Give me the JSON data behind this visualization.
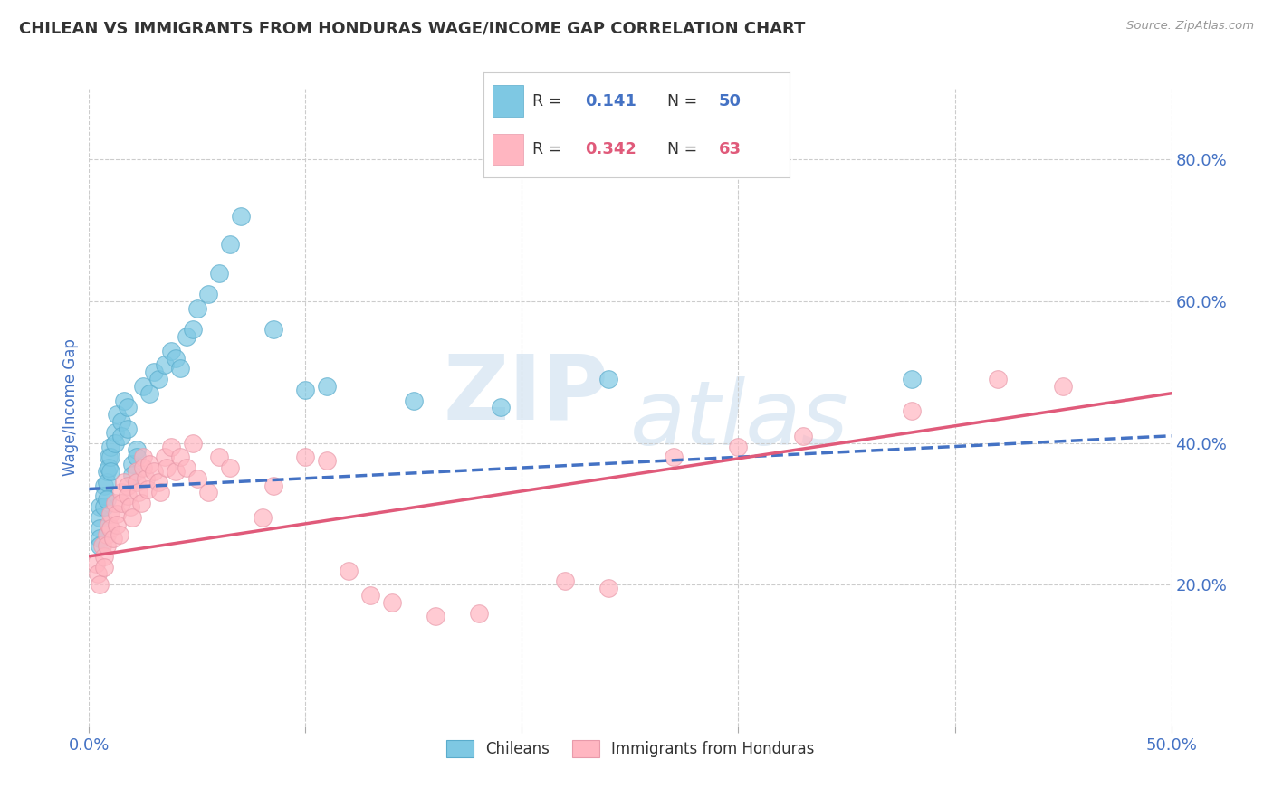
{
  "title": "CHILEAN VS IMMIGRANTS FROM HONDURAS WAGE/INCOME GAP CORRELATION CHART",
  "source": "Source: ZipAtlas.com",
  "ylabel": "Wage/Income Gap",
  "watermark_line1": "ZIP",
  "watermark_line2": "atlas",
  "R1": "0.141",
  "N1": "50",
  "R2": "0.342",
  "N2": "63",
  "color1": "#7ec8e3",
  "color2": "#ffb6c1",
  "color1_edge": "#5aaccc",
  "color2_edge": "#e89aaa",
  "trendline1_color": "#4472c4",
  "trendline2_color": "#e05a7a",
  "xlim": [
    0.0,
    0.5
  ],
  "ylim": [
    0.0,
    0.9
  ],
  "yticks": [
    0.2,
    0.4,
    0.6,
    0.8
  ],
  "ytick_labels": [
    "20.0%",
    "40.0%",
    "60.0%",
    "80.0%"
  ],
  "xtick_labels_left": "0.0%",
  "xtick_labels_right": "50.0%",
  "grid_xticks": [
    0.0,
    0.1,
    0.2,
    0.3,
    0.4,
    0.5
  ],
  "title_color": "#333333",
  "axis_tick_color": "#4472c4",
  "background_color": "#ffffff",
  "legend1_label": "Chileans",
  "legend2_label": "Immigrants from Honduras",
  "scatter1_x": [
    0.005,
    0.005,
    0.005,
    0.005,
    0.005,
    0.007,
    0.007,
    0.007,
    0.008,
    0.008,
    0.008,
    0.009,
    0.009,
    0.01,
    0.01,
    0.01,
    0.012,
    0.012,
    0.013,
    0.015,
    0.015,
    0.016,
    0.018,
    0.018,
    0.02,
    0.02,
    0.022,
    0.022,
    0.025,
    0.028,
    0.03,
    0.032,
    0.035,
    0.038,
    0.04,
    0.042,
    0.045,
    0.048,
    0.05,
    0.055,
    0.06,
    0.065,
    0.07,
    0.085,
    0.1,
    0.11,
    0.15,
    0.19,
    0.24,
    0.38
  ],
  "scatter1_y": [
    0.31,
    0.295,
    0.28,
    0.265,
    0.255,
    0.34,
    0.325,
    0.31,
    0.36,
    0.345,
    0.32,
    0.38,
    0.365,
    0.395,
    0.38,
    0.36,
    0.415,
    0.4,
    0.44,
    0.43,
    0.41,
    0.46,
    0.45,
    0.42,
    0.37,
    0.355,
    0.39,
    0.38,
    0.48,
    0.47,
    0.5,
    0.49,
    0.51,
    0.53,
    0.52,
    0.505,
    0.55,
    0.56,
    0.59,
    0.61,
    0.64,
    0.68,
    0.72,
    0.56,
    0.475,
    0.48,
    0.46,
    0.45,
    0.49,
    0.49
  ],
  "scatter2_x": [
    0.003,
    0.004,
    0.005,
    0.006,
    0.007,
    0.007,
    0.008,
    0.008,
    0.009,
    0.01,
    0.01,
    0.011,
    0.012,
    0.013,
    0.013,
    0.014,
    0.015,
    0.015,
    0.016,
    0.018,
    0.018,
    0.019,
    0.02,
    0.022,
    0.022,
    0.023,
    0.024,
    0.025,
    0.025,
    0.026,
    0.027,
    0.028,
    0.03,
    0.032,
    0.033,
    0.035,
    0.036,
    0.038,
    0.04,
    0.042,
    0.045,
    0.048,
    0.05,
    0.055,
    0.06,
    0.065,
    0.08,
    0.085,
    0.1,
    0.11,
    0.12,
    0.13,
    0.14,
    0.16,
    0.18,
    0.22,
    0.24,
    0.27,
    0.3,
    0.33,
    0.38,
    0.42,
    0.45
  ],
  "scatter2_y": [
    0.23,
    0.215,
    0.2,
    0.255,
    0.24,
    0.225,
    0.27,
    0.255,
    0.285,
    0.3,
    0.28,
    0.265,
    0.315,
    0.3,
    0.285,
    0.27,
    0.33,
    0.315,
    0.345,
    0.34,
    0.325,
    0.31,
    0.295,
    0.36,
    0.345,
    0.33,
    0.315,
    0.38,
    0.365,
    0.35,
    0.335,
    0.37,
    0.36,
    0.345,
    0.33,
    0.38,
    0.365,
    0.395,
    0.36,
    0.38,
    0.365,
    0.4,
    0.35,
    0.33,
    0.38,
    0.365,
    0.295,
    0.34,
    0.38,
    0.375,
    0.22,
    0.185,
    0.175,
    0.155,
    0.16,
    0.205,
    0.195,
    0.38,
    0.395,
    0.41,
    0.445,
    0.49,
    0.48
  ]
}
